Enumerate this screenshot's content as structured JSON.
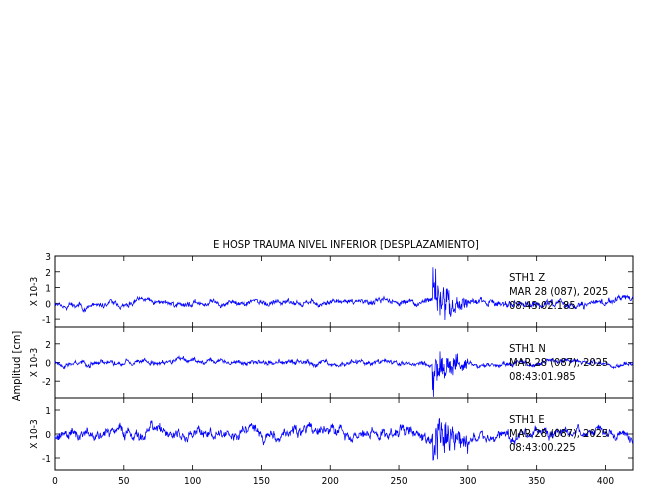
{
  "title": "E HOSP TRAUMA NIVEL INFERIOR [DESPLAZAMIENTO]",
  "ylabel": "Amplitud [cm]",
  "colors": {
    "trace": "#0000ff",
    "axes": "#000000"
  },
  "chart_data": {
    "type": "line",
    "title": "E HOSP TRAUMA NIVEL INFERIOR [DESPLAZAMIENTO]",
    "ylabel": "Amplitud [cm]",
    "xlim": [
      0,
      420
    ],
    "xticks": [
      0,
      50,
      100,
      150,
      200,
      250,
      300,
      350,
      400
    ],
    "panels": [
      {
        "name": "Z",
        "scale_label": "X 10-3",
        "ylim": [
          -1.5,
          3
        ],
        "yticks": [
          -1,
          0,
          1,
          2,
          3
        ],
        "station": "STH1",
        "component": "Z",
        "date": "MAR 28 (087), 2025",
        "time": "08:43:02.185",
        "pre_amp": 0.35,
        "event_amp": 1.8,
        "post_amp": 0.45,
        "seed": 11
      },
      {
        "name": "N",
        "scale_label": "X 10-3",
        "ylim": [
          -3.8,
          3.8
        ],
        "yticks": [
          -2,
          0,
          2
        ],
        "station": "STH1",
        "component": "N",
        "date": "MAR 28 (087), 2025",
        "time": "08:43:01.985",
        "pre_amp": 0.55,
        "event_amp": 2.8,
        "post_amp": 0.5,
        "seed": 23
      },
      {
        "name": "E",
        "scale_label": "X 10-3",
        "ylim": [
          -1.5,
          1.5
        ],
        "yticks": [
          -1,
          0,
          1
        ],
        "station": "STH1",
        "component": "E",
        "date": "MAR 28 (087), 2025",
        "time": "08:43:00.225",
        "pre_amp": 0.45,
        "event_amp": 0.9,
        "post_amp": 0.4,
        "seed": 37
      }
    ]
  }
}
